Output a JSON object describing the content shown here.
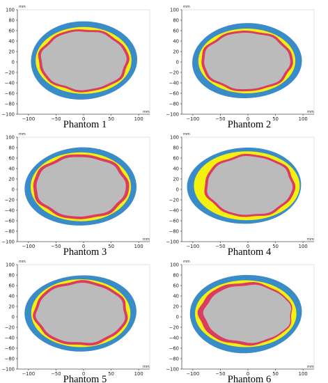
{
  "figure": {
    "colors": {
      "outer_layer": "#3a8cc9",
      "middle_layer": "#f4f10f",
      "inner_layer": "#dc3c5f",
      "core": "#bbbbbb"
    }
  },
  "chart_data": [
    {
      "type": "area",
      "title": "Phantom 1",
      "xlim": [
        -120,
        120
      ],
      "ylim": [
        -100,
        100
      ],
      "x_unit": "mm",
      "y_unit": "mm",
      "x_ticks": [
        "−100",
        "−50",
        "0",
        "50",
        "100"
      ],
      "y_ticks": [
        "100",
        "80",
        "60",
        "40",
        "20",
        "0",
        "−20",
        "−40",
        "−60",
        "−80",
        "−100"
      ],
      "layers": {
        "outer": {
          "cx": 0,
          "cy": 3,
          "rx": 95,
          "ry": 76
        },
        "middle": {
          "cx": 0,
          "cy": 3,
          "rx": 87,
          "ry": 64
        },
        "inner": {
          "cx": 0,
          "cy": 3,
          "rx": 82,
          "ry": 60
        },
        "core": {
          "cx": 0,
          "cy": 3,
          "rx": 77,
          "ry": 56
        }
      }
    },
    {
      "type": "area",
      "title": "Phantom 2",
      "xlim": [
        -120,
        120
      ],
      "ylim": [
        -100,
        100
      ],
      "x_unit": "mm",
      "y_unit": "mm",
      "x_ticks": [
        "−100",
        "−50",
        "0",
        "50",
        "100"
      ],
      "y_ticks": [
        "100",
        "80",
        "60",
        "40",
        "20",
        "0",
        "−20",
        "−40",
        "−60",
        "−80",
        "−100"
      ],
      "layers": {
        "outer": {
          "cx": -2,
          "cy": 2,
          "rx": 98,
          "ry": 73
        },
        "middle": {
          "cx": -2,
          "cy": 2,
          "rx": 88,
          "ry": 62
        },
        "inner": {
          "cx": -2,
          "cy": 2,
          "rx": 83,
          "ry": 58
        },
        "core": {
          "cx": -2,
          "cy": 2,
          "rx": 78,
          "ry": 54
        }
      }
    },
    {
      "type": "area",
      "title": "Phantom 3",
      "xlim": [
        -120,
        120
      ],
      "ylim": [
        -100,
        100
      ],
      "x_unit": "mm",
      "y_unit": "mm",
      "x_ticks": [
        "−100",
        "−50",
        "0",
        "50",
        "100"
      ],
      "y_ticks": [
        "100",
        "80",
        "60",
        "40",
        "20",
        "0",
        "−20",
        "−40",
        "−60",
        "−80",
        "−100"
      ],
      "layers": {
        "outer": {
          "cx": -5,
          "cy": 5,
          "rx": 100,
          "ry": 76
        },
        "middle": {
          "cx": -5,
          "cy": 5,
          "rx": 91,
          "ry": 66
        },
        "inner": {
          "cx": -5,
          "cy": 5,
          "rx": 87,
          "ry": 62
        },
        "core": {
          "cx": -5,
          "cy": 5,
          "rx": 81,
          "ry": 57
        }
      }
    },
    {
      "type": "area",
      "title": "Phantom 4",
      "xlim": [
        -120,
        120
      ],
      "ylim": [
        -100,
        100
      ],
      "x_unit": "mm",
      "y_unit": "mm",
      "x_ticks": [
        "−100",
        "−50",
        "0",
        "50",
        "100"
      ],
      "y_ticks": [
        "100",
        "80",
        "60",
        "40",
        "20",
        "0",
        "−20",
        "−40",
        "−60",
        "−80",
        "−100"
      ],
      "layers": {
        "outer": {
          "cx": -6,
          "cy": 7,
          "rx": 102,
          "ry": 74
        },
        "middle": {
          "cx": -2,
          "cy": 7,
          "rx": 96,
          "ry": 66
        },
        "inner": {
          "cx": 3,
          "cy": 7,
          "rx": 82,
          "ry": 60
        },
        "core": {
          "cx": 3,
          "cy": 7,
          "rx": 77,
          "ry": 56
        }
      }
    },
    {
      "type": "area",
      "title": "Phantom 5",
      "xlim": [
        -120,
        120
      ],
      "ylim": [
        -100,
        100
      ],
      "x_unit": "mm",
      "y_unit": "mm",
      "x_ticks": [
        "−100",
        "−50",
        "0",
        "50",
        "100"
      ],
      "y_ticks": [
        "100",
        "80",
        "60",
        "40",
        "20",
        "0",
        "−20",
        "−40",
        "−60",
        "−80",
        "−100"
      ],
      "layers": {
        "outer": {
          "cx": -5,
          "cy": 7,
          "rx": 100,
          "ry": 74
        },
        "middle": {
          "cx": -5,
          "cy": 7,
          "rx": 90,
          "ry": 65
        },
        "inner": {
          "cx": -5,
          "cy": 7,
          "rx": 85,
          "ry": 62
        },
        "core": {
          "cx": -5,
          "cy": 7,
          "rx": 80,
          "ry": 57
        }
      }
    },
    {
      "type": "area",
      "title": "Phantom 6",
      "xlim": [
        -120,
        120
      ],
      "ylim": [
        -100,
        100
      ],
      "x_unit": "mm",
      "y_unit": "mm",
      "x_ticks": [
        "−100",
        "−50",
        "0",
        "50",
        "100"
      ],
      "y_ticks": [
        "100",
        "80",
        "60",
        "40",
        "20",
        "0",
        "−20",
        "−40",
        "−60",
        "−80",
        "−100"
      ],
      "layers": {
        "outer": {
          "cx": -4,
          "cy": 6,
          "rx": 100,
          "ry": 76
        },
        "middle": {
          "cx": -4,
          "cy": 6,
          "rx": 92,
          "ry": 64
        },
        "inner": {
          "cx": -4,
          "cy": 6,
          "rx": 85,
          "ry": 60
        },
        "core": {
          "cx": 0,
          "cy": 6,
          "rx": 79,
          "ry": 55
        }
      }
    }
  ]
}
